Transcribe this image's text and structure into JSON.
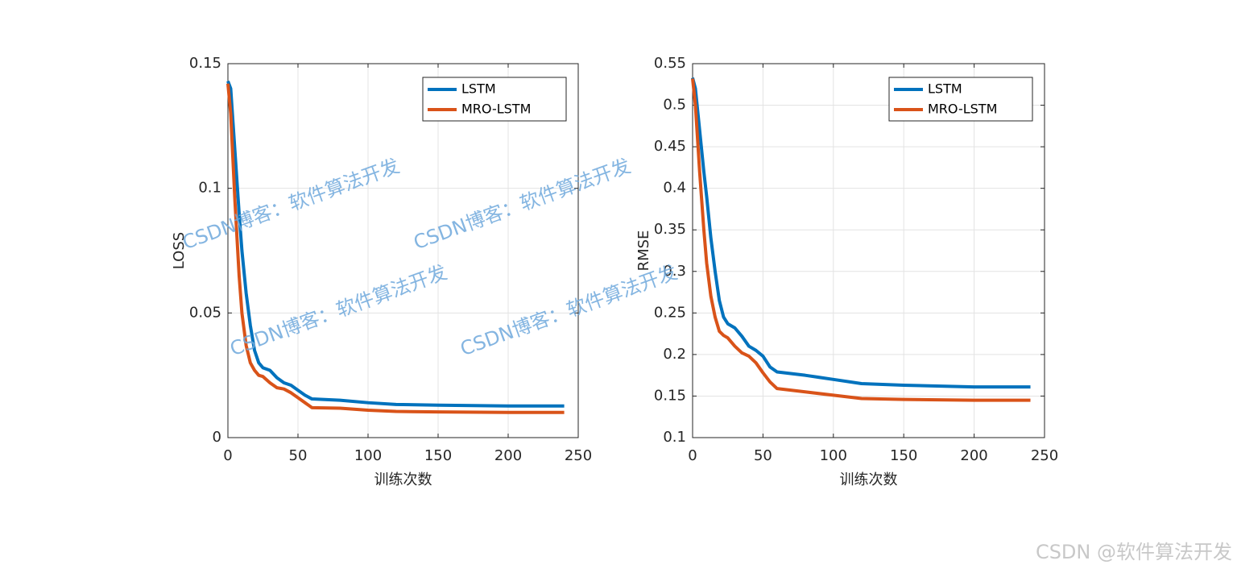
{
  "watermark": "CSDN博客：软件算法开发",
  "footer": "CSDN @软件算法开发",
  "chart_data": [
    {
      "type": "line",
      "xlabel": "训练次数",
      "ylabel": "LOSS",
      "x": [
        0,
        2,
        5,
        8,
        10,
        13,
        16,
        19,
        22,
        25,
        30,
        35,
        40,
        45,
        50,
        55,
        60,
        80,
        100,
        120,
        150,
        200,
        240
      ],
      "series": [
        {
          "name": "LSTM",
          "color": "#0072BD",
          "values": [
            0.143,
            0.14,
            0.115,
            0.09,
            0.075,
            0.058,
            0.045,
            0.035,
            0.03,
            0.028,
            0.027,
            0.024,
            0.022,
            0.021,
            0.019,
            0.017,
            0.0155,
            0.015,
            0.014,
            0.0133,
            0.013,
            0.0127,
            0.0127
          ]
        },
        {
          "name": "MRO-LSTM",
          "color": "#D95319",
          "values": [
            0.142,
            0.13,
            0.095,
            0.065,
            0.05,
            0.037,
            0.03,
            0.027,
            0.025,
            0.0245,
            0.022,
            0.02,
            0.0195,
            0.018,
            0.016,
            0.014,
            0.012,
            0.0118,
            0.011,
            0.0105,
            0.0103,
            0.0101,
            0.0101
          ]
        }
      ],
      "xlim": [
        0,
        250
      ],
      "xticks": [
        0,
        50,
        100,
        150,
        200,
        250
      ],
      "ylim": [
        0,
        0.15
      ],
      "yticks": [
        0,
        0.05,
        0.1,
        0.15
      ],
      "grid": true,
      "legend": "upper right"
    },
    {
      "type": "line",
      "xlabel": "训练次数",
      "ylabel": "RMSE",
      "x": [
        0,
        2,
        5,
        8,
        10,
        13,
        16,
        19,
        22,
        25,
        30,
        35,
        40,
        45,
        50,
        55,
        60,
        80,
        100,
        120,
        150,
        200,
        240
      ],
      "series": [
        {
          "name": "LSTM",
          "color": "#0072BD",
          "values": [
            0.533,
            0.52,
            0.47,
            0.42,
            0.39,
            0.34,
            0.3,
            0.265,
            0.245,
            0.237,
            0.232,
            0.222,
            0.21,
            0.205,
            0.198,
            0.185,
            0.179,
            0.175,
            0.17,
            0.165,
            0.163,
            0.161,
            0.161
          ]
        },
        {
          "name": "MRO-LSTM",
          "color": "#D95319",
          "values": [
            0.532,
            0.5,
            0.42,
            0.35,
            0.31,
            0.27,
            0.245,
            0.228,
            0.223,
            0.22,
            0.21,
            0.202,
            0.198,
            0.19,
            0.178,
            0.167,
            0.159,
            0.155,
            0.151,
            0.147,
            0.146,
            0.145,
            0.145
          ]
        }
      ],
      "xlim": [
        0,
        250
      ],
      "xticks": [
        0,
        50,
        100,
        150,
        200,
        250
      ],
      "ylim": [
        0.1,
        0.55
      ],
      "yticks": [
        0.1,
        0.15,
        0.2,
        0.25,
        0.3,
        0.35,
        0.4,
        0.45,
        0.5,
        0.55
      ],
      "grid": true,
      "legend": "upper right"
    }
  ]
}
